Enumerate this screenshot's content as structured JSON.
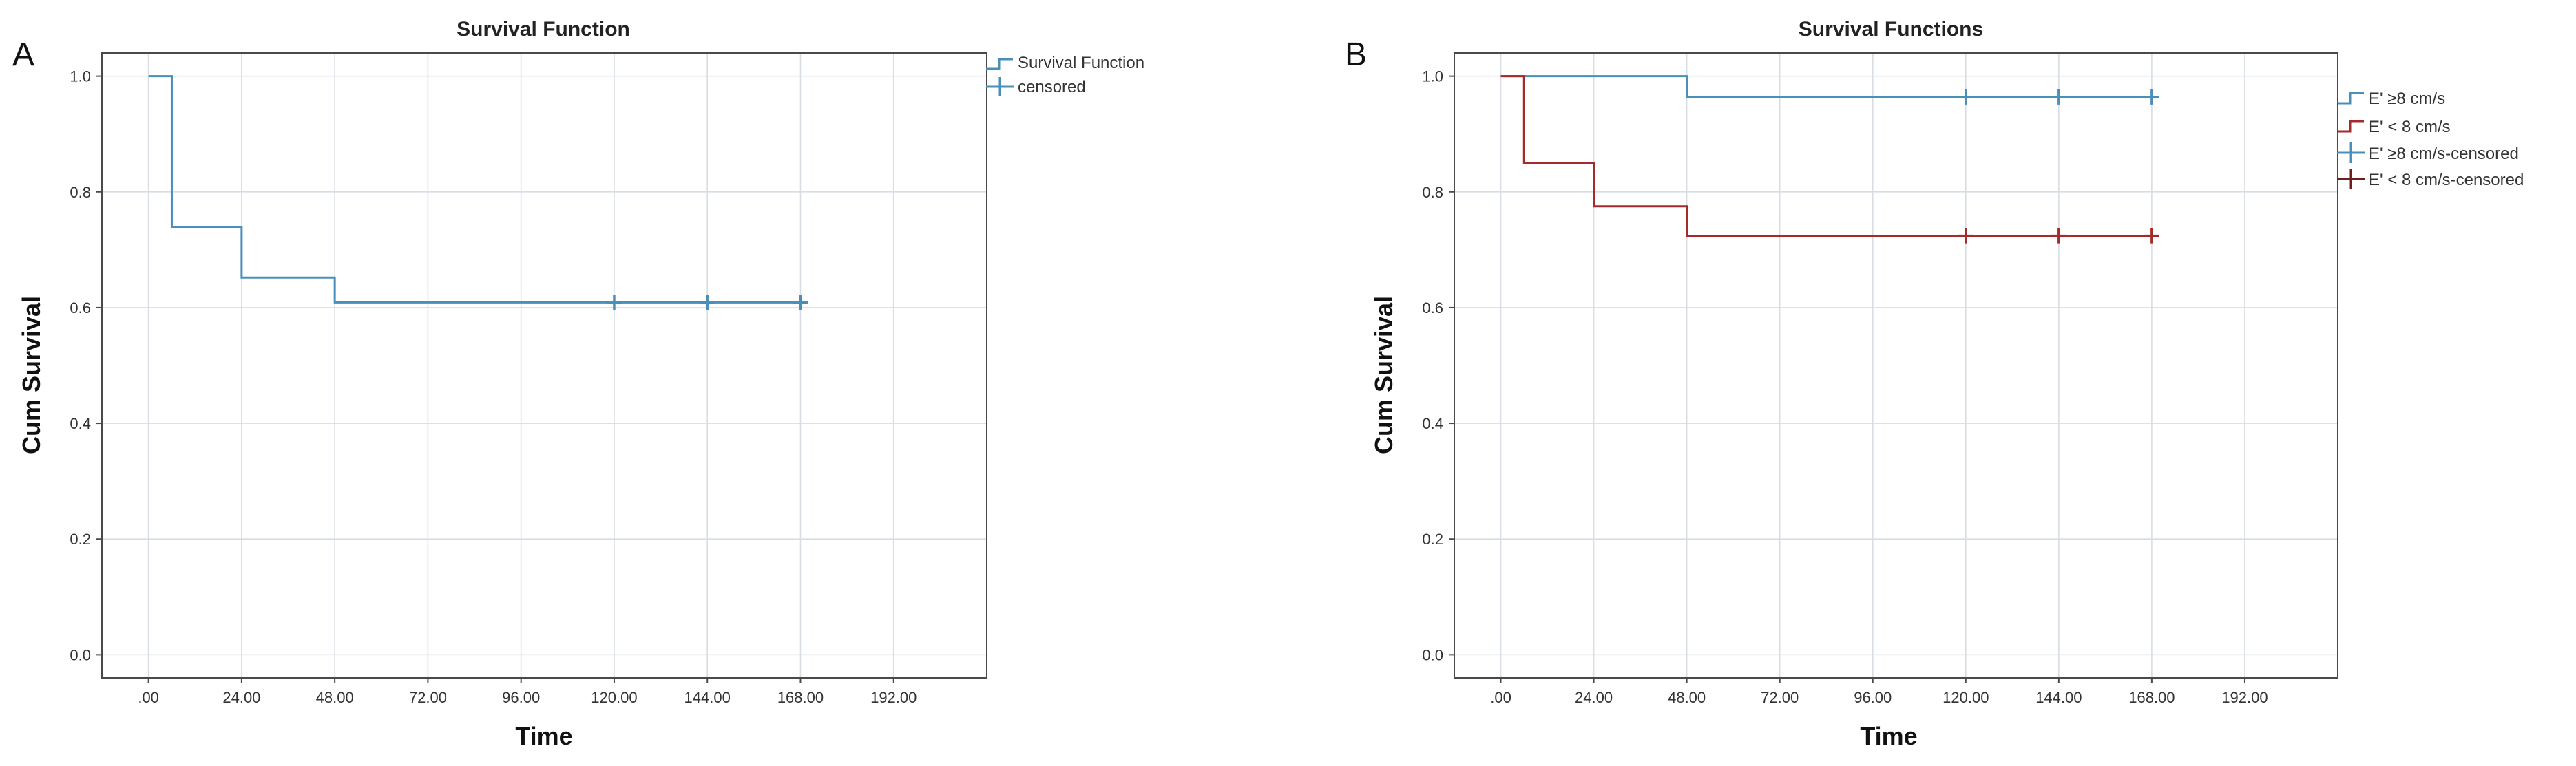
{
  "colors": {
    "blue": "#4a8fb8",
    "red": "#a52a2a",
    "grid": "#d7dde3"
  },
  "chart_data": [
    {
      "panel_label": "A",
      "type": "line",
      "title": "Survival Function",
      "xlabel": "Time",
      "ylabel": "Cum Survival",
      "xlim": [
        -12,
        216
      ],
      "ylim": [
        -0.04,
        1.04
      ],
      "x_ticks": [
        0,
        24,
        48,
        72,
        96,
        120,
        144,
        168,
        192
      ],
      "x_tick_labels": [
        ".00",
        "24.00",
        "48.00",
        "72.00",
        "96.00",
        "120.00",
        "144.00",
        "168.00",
        "192.00"
      ],
      "y_ticks": [
        0,
        0.2,
        0.4,
        0.6,
        0.8,
        1.0
      ],
      "y_tick_labels": [
        "0.0",
        "0.2",
        "0.4",
        "0.6",
        "0.8",
        "1.0"
      ],
      "grid": true,
      "legend_position": "top-right",
      "legend": [
        "Survival Function",
        "censored"
      ],
      "series": [
        {
          "name": "Survival Function",
          "color": "#4a8fb8",
          "steps": [
            [
              0,
              1.0
            ],
            [
              6,
              0.739
            ],
            [
              24,
              0.652
            ],
            [
              48,
              0.609
            ],
            [
              168,
              0.609
            ]
          ],
          "censored": [
            [
              120,
              0.609
            ],
            [
              144,
              0.609
            ],
            [
              168,
              0.609
            ]
          ]
        }
      ]
    },
    {
      "panel_label": "B",
      "type": "line",
      "title": "Survival Functions",
      "xlabel": "Time",
      "ylabel": "Cum Survival",
      "xlim": [
        -12,
        216
      ],
      "ylim": [
        -0.04,
        1.04
      ],
      "x_ticks": [
        0,
        24,
        48,
        72,
        96,
        120,
        144,
        168,
        192
      ],
      "x_tick_labels": [
        ".00",
        "24.00",
        "48.00",
        "72.00",
        "96.00",
        "120.00",
        "144.00",
        "168.00",
        "192.00"
      ],
      "y_ticks": [
        0,
        0.2,
        0.4,
        0.6,
        0.8,
        1.0
      ],
      "y_tick_labels": [
        "0.0",
        "0.2",
        "0.4",
        "0.6",
        "0.8",
        "1.0"
      ],
      "grid": true,
      "legend_position": "top-right",
      "legend": [
        "E' ≥8 cm/s",
        "E' < 8 cm/s",
        "E' ≥8 cm/s-censored",
        "E' < 8 cm/s-censored"
      ],
      "series": [
        {
          "name": "E' ≥8 cm/s",
          "color": "#4a8fb8",
          "steps": [
            [
              0,
              1.0
            ],
            [
              48,
              0.964
            ],
            [
              168,
              0.964
            ]
          ],
          "censored": [
            [
              120,
              0.964
            ],
            [
              144,
              0.964
            ],
            [
              168,
              0.964
            ]
          ]
        },
        {
          "name": "E' < 8 cm/s",
          "color": "#a52a2a",
          "steps": [
            [
              0,
              1.0
            ],
            [
              6,
              0.85
            ],
            [
              24,
              0.775
            ],
            [
              48,
              0.724
            ],
            [
              168,
              0.724
            ]
          ],
          "censored": [
            [
              120,
              0.724
            ],
            [
              144,
              0.724
            ],
            [
              168,
              0.724
            ]
          ]
        }
      ]
    }
  ]
}
